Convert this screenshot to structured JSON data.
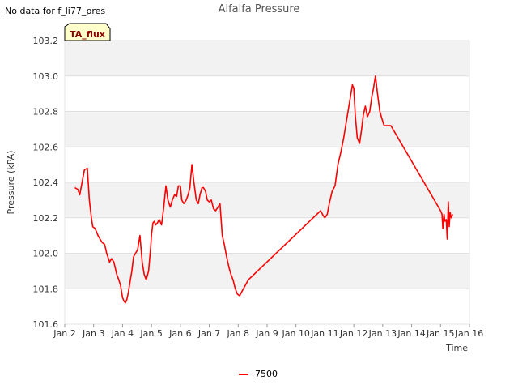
{
  "no_data_text": "No data for f_li77_pres",
  "badge_label": "TA_flux",
  "colors": {
    "series": "#ff0000",
    "band": "#f2f2f2",
    "grid": "#e0e0e0",
    "badge_bg": "#ffffcc"
  },
  "chart_data": {
    "type": "line",
    "title": "Alfalfa Pressure",
    "xlabel": "Time",
    "ylabel": "Pressure (kPA)",
    "xlim": [
      2,
      16
    ],
    "ylim": [
      101.6,
      103.2
    ],
    "xticks": [
      {
        "v": 2,
        "label": "Jan 2"
      },
      {
        "v": 3,
        "label": "Jan 3"
      },
      {
        "v": 4,
        "label": "Jan 4"
      },
      {
        "v": 5,
        "label": "Jan 5"
      },
      {
        "v": 6,
        "label": "Jan 6"
      },
      {
        "v": 7,
        "label": "Jan 7"
      },
      {
        "v": 8,
        "label": "Jan 8"
      },
      {
        "v": 9,
        "label": "Jan 9"
      },
      {
        "v": 10,
        "label": "Jan 10"
      },
      {
        "v": 11,
        "label": "Jan 11"
      },
      {
        "v": 12,
        "label": "Jan 12"
      },
      {
        "v": 13,
        "label": "Jan 13"
      },
      {
        "v": 14,
        "label": "Jan 14"
      },
      {
        "v": 15,
        "label": "Jan 15"
      },
      {
        "v": 16,
        "label": "Jan 16"
      }
    ],
    "yticks": [
      {
        "v": 101.6,
        "label": "101.6"
      },
      {
        "v": 101.8,
        "label": "101.8"
      },
      {
        "v": 102.0,
        "label": "102.0"
      },
      {
        "v": 102.2,
        "label": "102.2"
      },
      {
        "v": 102.4,
        "label": "102.4"
      },
      {
        "v": 102.6,
        "label": "102.6"
      },
      {
        "v": 102.8,
        "label": "102.8"
      },
      {
        "v": 103.0,
        "label": "103.0"
      },
      {
        "v": 103.2,
        "label": "103.2"
      }
    ],
    "series": [
      {
        "name": "7500",
        "x": [
          2.35,
          2.45,
          2.52,
          2.6,
          2.68,
          2.78,
          2.85,
          2.92,
          2.97,
          3.05,
          3.15,
          3.22,
          3.3,
          3.38,
          3.45,
          3.55,
          3.62,
          3.7,
          3.8,
          3.87,
          3.93,
          4.0,
          4.05,
          4.1,
          4.15,
          4.2,
          4.27,
          4.32,
          4.38,
          4.45,
          4.52,
          4.6,
          4.68,
          4.75,
          4.82,
          4.9,
          4.97,
          5.0,
          5.05,
          5.1,
          5.15,
          5.2,
          5.27,
          5.35,
          5.42,
          5.5,
          5.57,
          5.65,
          5.72,
          5.8,
          5.87,
          5.93,
          6.0,
          6.05,
          6.12,
          6.2,
          6.27,
          6.33,
          6.4,
          6.47,
          6.55,
          6.62,
          6.68,
          6.75,
          6.8,
          6.87,
          6.93,
          7.0,
          7.07,
          7.15,
          7.22,
          7.3,
          7.37,
          7.45,
          7.52,
          7.6,
          7.68,
          7.75,
          7.82,
          7.9,
          7.97,
          8.05,
          8.15,
          8.25,
          8.35,
          10.85,
          10.95,
          11.0,
          11.08,
          11.15,
          11.25,
          11.35,
          11.45,
          11.55,
          11.65,
          11.75,
          11.85,
          11.9,
          11.95,
          12.0,
          12.05,
          12.12,
          12.2,
          12.27,
          12.33,
          12.4,
          12.47,
          12.55,
          12.62,
          12.68,
          12.75,
          12.82,
          12.9,
          12.97,
          13.05,
          13.12,
          13.2,
          13.28,
          15.0,
          15.05,
          15.08,
          15.12,
          15.15,
          15.2,
          15.23,
          15.27,
          15.3,
          15.33,
          15.37,
          15.42
        ],
        "values": [
          102.37,
          102.36,
          102.33,
          102.4,
          102.47,
          102.48,
          102.3,
          102.2,
          102.15,
          102.14,
          102.1,
          102.08,
          102.06,
          102.05,
          102.0,
          101.95,
          101.97,
          101.95,
          101.88,
          101.85,
          101.82,
          101.75,
          101.73,
          101.72,
          101.74,
          101.78,
          101.85,
          101.9,
          101.98,
          102.0,
          102.02,
          102.1,
          101.95,
          101.88,
          101.85,
          101.9,
          102.03,
          102.1,
          102.17,
          102.18,
          102.16,
          102.17,
          102.19,
          102.16,
          102.25,
          102.38,
          102.3,
          102.26,
          102.3,
          102.33,
          102.32,
          102.38,
          102.38,
          102.3,
          102.28,
          102.3,
          102.33,
          102.37,
          102.5,
          102.4,
          102.3,
          102.28,
          102.33,
          102.37,
          102.37,
          102.35,
          102.3,
          102.29,
          102.3,
          102.25,
          102.24,
          102.26,
          102.28,
          102.1,
          102.05,
          101.98,
          101.92,
          101.88,
          101.85,
          101.8,
          101.77,
          101.76,
          101.79,
          101.82,
          101.85,
          102.24,
          102.21,
          102.2,
          102.22,
          102.28,
          102.35,
          102.38,
          102.5,
          102.57,
          102.65,
          102.75,
          102.85,
          102.9,
          102.95,
          102.93,
          102.78,
          102.65,
          102.62,
          102.7,
          102.78,
          102.83,
          102.77,
          102.8,
          102.88,
          102.93,
          103.0,
          102.9,
          102.8,
          102.76,
          102.72,
          102.72,
          102.72,
          102.72,
          102.24,
          102.22,
          102.14,
          102.22,
          102.18,
          102.19,
          102.08,
          102.29,
          102.15,
          102.23,
          102.2,
          102.22
        ]
      }
    ],
    "legend_position": "bottom-center",
    "grid": true
  }
}
